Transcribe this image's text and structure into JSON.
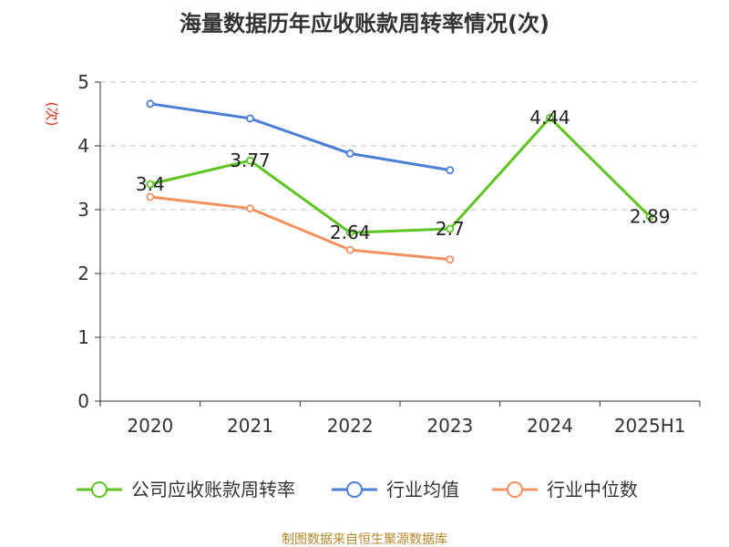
{
  "chart_data": {
    "type": "line",
    "title": "海量数据历年应收账款周转率情况(次)",
    "ylabel": "(次)",
    "xlabel": "",
    "categories": [
      "2020",
      "2021",
      "2022",
      "2023",
      "2024",
      "2025H1"
    ],
    "ylim": [
      0,
      5
    ],
    "yticks": [
      0,
      1,
      2,
      3,
      4,
      5
    ],
    "grid": true,
    "legend_position": "bottom",
    "series": [
      {
        "name": "公司应收账款周转率",
        "color": "#5ec520",
        "values": [
          3.4,
          3.77,
          2.64,
          2.7,
          4.44,
          2.89
        ],
        "labels": true
      },
      {
        "name": "行业均值",
        "color": "#4a7fd8",
        "values": [
          4.66,
          4.43,
          3.88,
          3.62,
          null,
          null
        ],
        "labels": false
      },
      {
        "name": "行业中位数",
        "color": "#f4925f",
        "values": [
          3.2,
          3.02,
          2.37,
          2.22,
          null,
          null
        ],
        "labels": false
      }
    ]
  },
  "source": "制图数据来自恒生聚源数据库"
}
